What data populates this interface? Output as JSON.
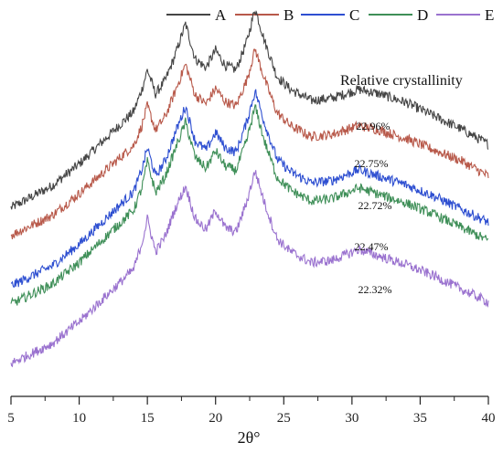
{
  "chart_data": {
    "type": "line",
    "title": "",
    "xlabel": "2θ°",
    "ylabel": "",
    "xlim": [
      5,
      40
    ],
    "x_ticks": [
      5,
      10,
      15,
      20,
      25,
      30,
      35,
      40
    ],
    "x_tick_labels": [
      "5",
      "10",
      "15",
      "20",
      "25",
      "30",
      "35",
      "40"
    ],
    "grid": false,
    "legend_position": "top",
    "annotation_title": "Relative crystallinity",
    "series": [
      {
        "name": "A",
        "color": "#454545",
        "crystallinity_label": "22.96%",
        "points": [
          [
            5,
            0.06
          ],
          [
            8,
            0.16
          ],
          [
            10,
            0.26
          ],
          [
            12,
            0.38
          ],
          [
            14,
            0.5
          ],
          [
            14.6,
            0.6
          ],
          [
            15.0,
            0.69
          ],
          [
            15.6,
            0.58
          ],
          [
            16.3,
            0.64
          ],
          [
            17.0,
            0.75
          ],
          [
            17.8,
            0.9
          ],
          [
            18.5,
            0.74
          ],
          [
            19.3,
            0.7
          ],
          [
            20.0,
            0.78
          ],
          [
            20.7,
            0.71
          ],
          [
            21.5,
            0.69
          ],
          [
            22.3,
            0.82
          ],
          [
            22.9,
            0.97
          ],
          [
            23.6,
            0.82
          ],
          [
            24.5,
            0.66
          ],
          [
            25.5,
            0.6
          ],
          [
            27,
            0.55
          ],
          [
            28.5,
            0.56
          ],
          [
            30.5,
            0.6
          ],
          [
            32,
            0.58
          ],
          [
            34,
            0.54
          ],
          [
            36,
            0.48
          ],
          [
            38,
            0.42
          ],
          [
            40,
            0.35
          ]
        ]
      },
      {
        "name": "B",
        "color": "#b8594a",
        "crystallinity_label": "22.75%",
        "points": [
          [
            5,
            0.06
          ],
          [
            8,
            0.15
          ],
          [
            10,
            0.25
          ],
          [
            12,
            0.36
          ],
          [
            14,
            0.47
          ],
          [
            14.6,
            0.56
          ],
          [
            15.0,
            0.65
          ],
          [
            15.6,
            0.54
          ],
          [
            16.3,
            0.6
          ],
          [
            17.0,
            0.71
          ],
          [
            17.8,
            0.84
          ],
          [
            18.5,
            0.7
          ],
          [
            19.3,
            0.66
          ],
          [
            20.0,
            0.73
          ],
          [
            20.7,
            0.67
          ],
          [
            21.5,
            0.65
          ],
          [
            22.3,
            0.77
          ],
          [
            22.9,
            0.91
          ],
          [
            23.6,
            0.77
          ],
          [
            24.5,
            0.62
          ],
          [
            25.5,
            0.56
          ],
          [
            27,
            0.51
          ],
          [
            28.5,
            0.52
          ],
          [
            30.5,
            0.56
          ],
          [
            32,
            0.54
          ],
          [
            34,
            0.5
          ],
          [
            36,
            0.45
          ],
          [
            38,
            0.4
          ],
          [
            40,
            0.33
          ]
        ]
      },
      {
        "name": "C",
        "color": "#2e4fd1",
        "crystallinity_label": "22.72%",
        "points": [
          [
            5,
            0.05
          ],
          [
            8,
            0.14
          ],
          [
            10,
            0.24
          ],
          [
            12,
            0.36
          ],
          [
            14,
            0.48
          ],
          [
            14.6,
            0.58
          ],
          [
            15.0,
            0.68
          ],
          [
            15.6,
            0.55
          ],
          [
            16.3,
            0.62
          ],
          [
            17.0,
            0.74
          ],
          [
            17.8,
            0.87
          ],
          [
            18.5,
            0.71
          ],
          [
            19.3,
            0.67
          ],
          [
            20.0,
            0.75
          ],
          [
            20.7,
            0.68
          ],
          [
            21.5,
            0.66
          ],
          [
            22.3,
            0.8
          ],
          [
            22.9,
            0.94
          ],
          [
            23.6,
            0.79
          ],
          [
            24.5,
            0.63
          ],
          [
            25.5,
            0.57
          ],
          [
            27,
            0.52
          ],
          [
            28.5,
            0.53
          ],
          [
            30.5,
            0.58
          ],
          [
            32,
            0.55
          ],
          [
            34,
            0.51
          ],
          [
            36,
            0.46
          ],
          [
            38,
            0.4
          ],
          [
            40,
            0.34
          ]
        ]
      },
      {
        "name": "D",
        "color": "#3f8f58",
        "crystallinity_label": "22.47%",
        "points": [
          [
            5,
            0.05
          ],
          [
            8,
            0.14
          ],
          [
            10,
            0.24
          ],
          [
            12,
            0.36
          ],
          [
            14,
            0.48
          ],
          [
            14.6,
            0.58
          ],
          [
            15.0,
            0.7
          ],
          [
            15.6,
            0.56
          ],
          [
            16.3,
            0.63
          ],
          [
            17.0,
            0.75
          ],
          [
            17.8,
            0.88
          ],
          [
            18.5,
            0.72
          ],
          [
            19.3,
            0.67
          ],
          [
            20.0,
            0.75
          ],
          [
            20.7,
            0.68
          ],
          [
            21.5,
            0.66
          ],
          [
            22.3,
            0.8
          ],
          [
            22.9,
            0.95
          ],
          [
            23.6,
            0.79
          ],
          [
            24.5,
            0.63
          ],
          [
            25.5,
            0.57
          ],
          [
            27,
            0.52
          ],
          [
            28.5,
            0.53
          ],
          [
            30.5,
            0.58
          ],
          [
            32,
            0.55
          ],
          [
            34,
            0.51
          ],
          [
            36,
            0.46
          ],
          [
            38,
            0.4
          ],
          [
            40,
            0.34
          ]
        ]
      },
      {
        "name": "E",
        "color": "#9a72cf",
        "crystallinity_label": "22.32%",
        "points": [
          [
            5,
            0.05
          ],
          [
            8,
            0.14
          ],
          [
            10,
            0.24
          ],
          [
            12,
            0.36
          ],
          [
            14,
            0.48
          ],
          [
            14.6,
            0.6
          ],
          [
            15.0,
            0.71
          ],
          [
            15.6,
            0.56
          ],
          [
            16.3,
            0.63
          ],
          [
            17.0,
            0.75
          ],
          [
            17.8,
            0.86
          ],
          [
            18.5,
            0.71
          ],
          [
            19.3,
            0.66
          ],
          [
            20.0,
            0.75
          ],
          [
            20.7,
            0.67
          ],
          [
            21.5,
            0.65
          ],
          [
            22.3,
            0.79
          ],
          [
            22.9,
            0.93
          ],
          [
            23.6,
            0.78
          ],
          [
            24.5,
            0.62
          ],
          [
            25.5,
            0.56
          ],
          [
            27,
            0.51
          ],
          [
            28.5,
            0.52
          ],
          [
            30.5,
            0.57
          ],
          [
            32,
            0.54
          ],
          [
            34,
            0.5
          ],
          [
            36,
            0.45
          ],
          [
            38,
            0.39
          ],
          [
            40,
            0.33
          ]
        ]
      }
    ]
  }
}
